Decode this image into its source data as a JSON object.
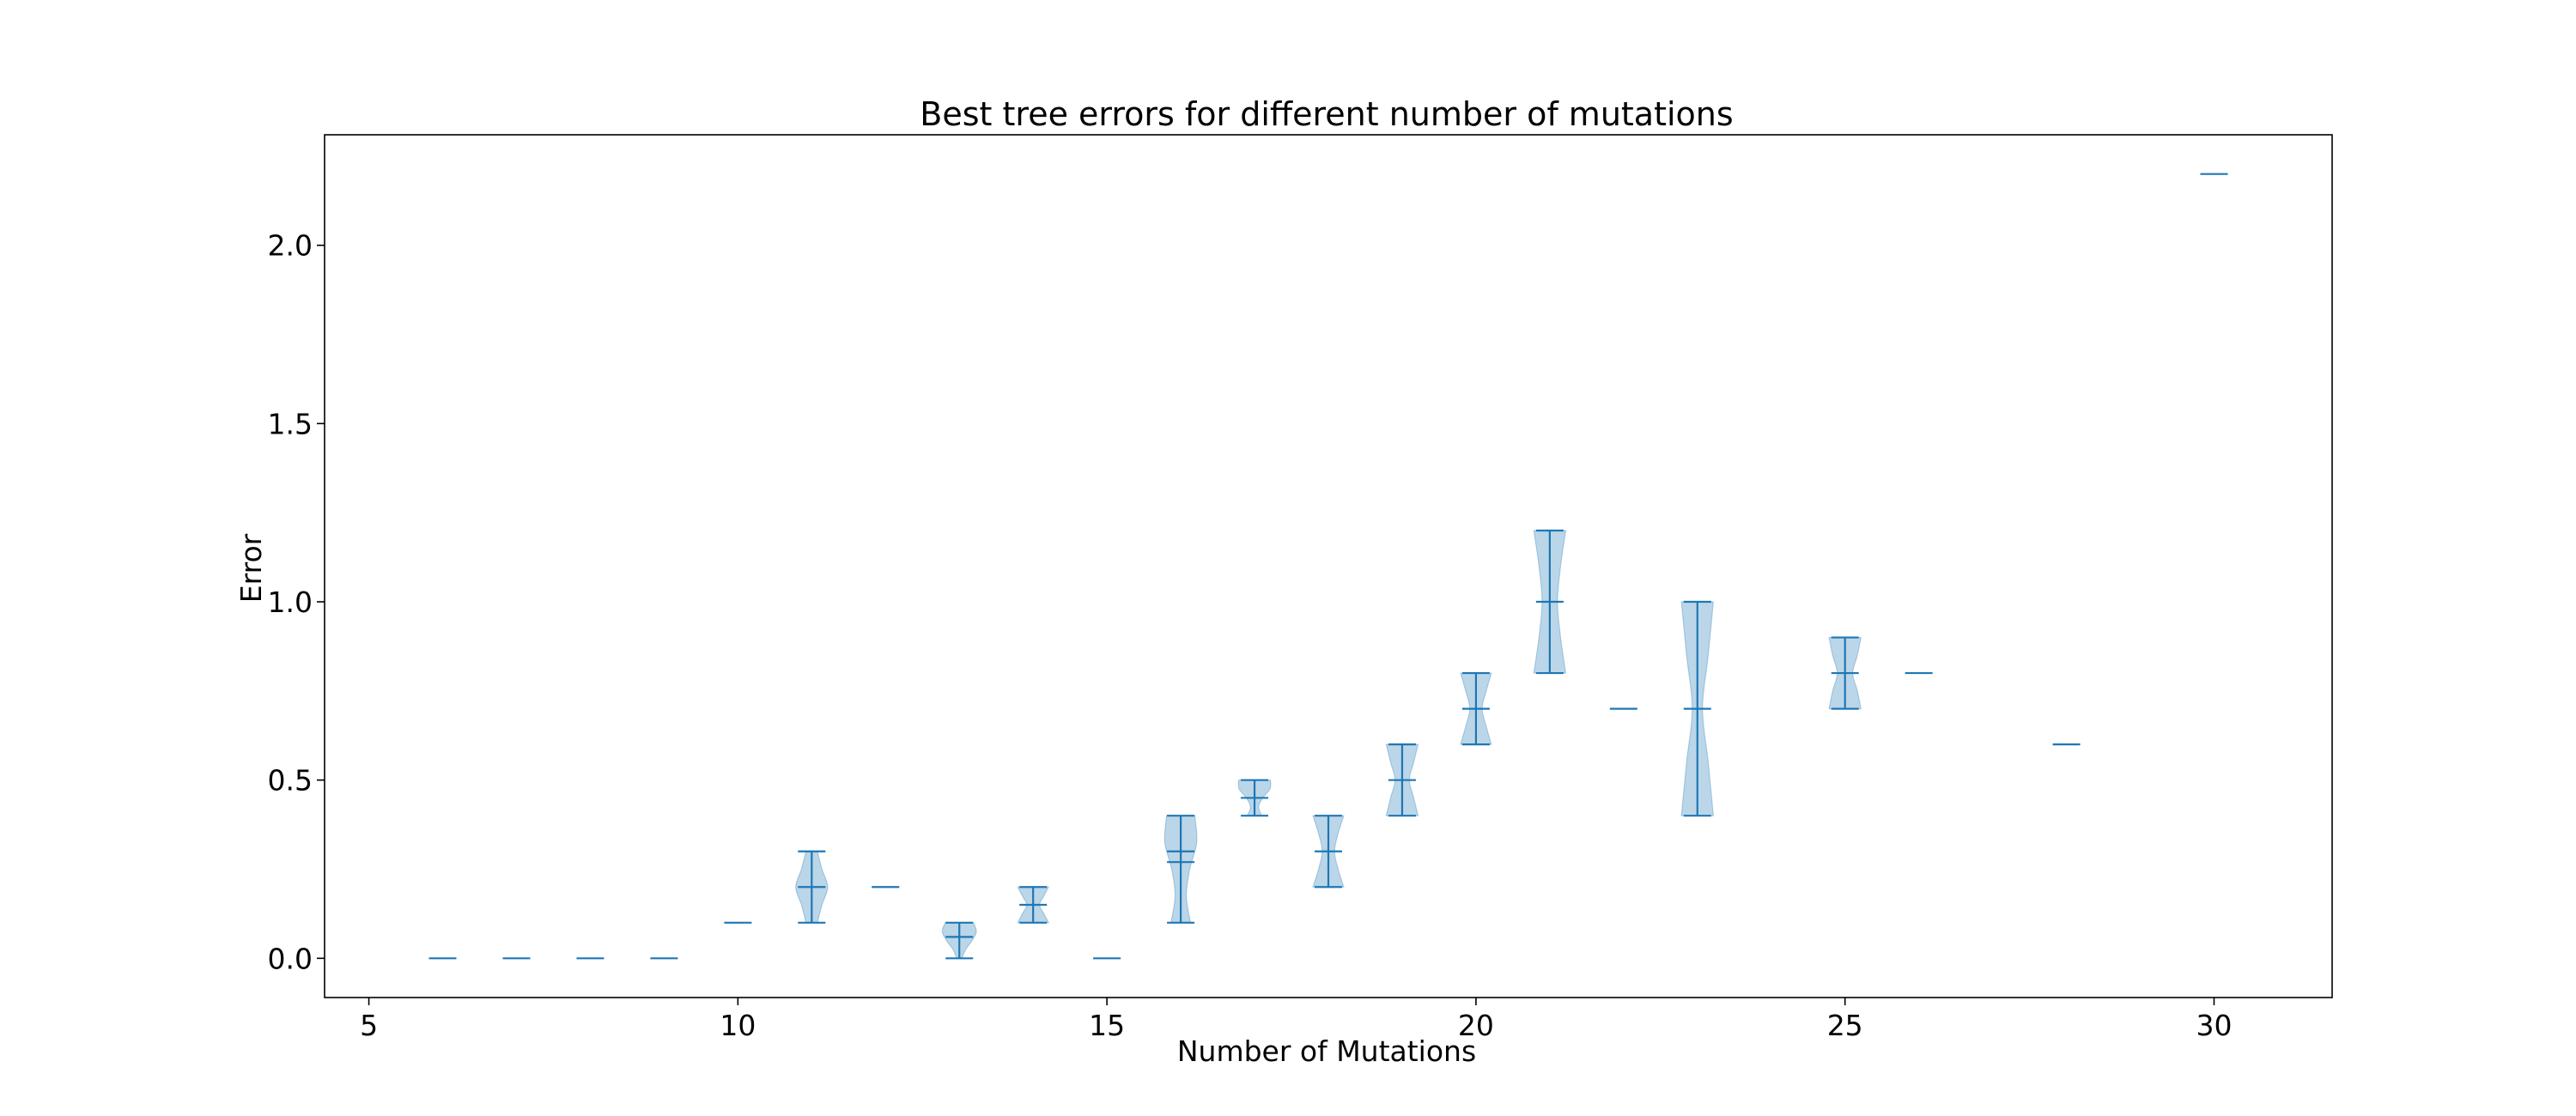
{
  "chart_data": {
    "type": "violin",
    "title": "Best tree errors for different number of mutations",
    "xlabel": "Number of Mutations",
    "ylabel": "Error",
    "xlim": [
      4.4,
      31.6
    ],
    "ylim": [
      -0.11,
      2.31
    ],
    "xticks": [
      5,
      10,
      15,
      20,
      25,
      30
    ],
    "yticks": [
      0.0,
      0.5,
      1.0,
      1.5,
      2.0
    ],
    "xtick_labels": [
      "5",
      "10",
      "15",
      "20",
      "25",
      "30"
    ],
    "ytick_labels": [
      "0.0",
      "0.5",
      "1.0",
      "1.5",
      "2.0"
    ],
    "grid": false,
    "colors": {
      "body": "#1f77b4",
      "line": "#1f77b4",
      "frame": "#000000"
    },
    "violins": [
      {
        "x": 6,
        "min": 0.0,
        "median": 0.0,
        "max": 0.0
      },
      {
        "x": 7,
        "min": 0.0,
        "median": 0.0,
        "max": 0.0
      },
      {
        "x": 8,
        "min": 0.0,
        "median": 0.0,
        "max": 0.0
      },
      {
        "x": 9,
        "min": 0.0,
        "median": 0.0,
        "max": 0.0
      },
      {
        "x": 10,
        "min": 0.1,
        "median": 0.1,
        "max": 0.1
      },
      {
        "x": 11,
        "min": 0.1,
        "median": 0.2,
        "max": 0.3,
        "shape": [
          0.22,
          0.4,
          0.62,
          0.4,
          0.22
        ]
      },
      {
        "x": 12,
        "min": 0.2,
        "median": 0.2,
        "max": 0.2
      },
      {
        "x": 13,
        "min": 0.0,
        "median": 0.06,
        "max": 0.1,
        "shape": [
          0.1,
          0.25,
          0.5,
          0.66,
          0.55
        ]
      },
      {
        "x": 14,
        "min": 0.1,
        "median": 0.15,
        "max": 0.2,
        "shape": [
          0.6,
          0.42,
          0.25,
          0.42,
          0.6
        ]
      },
      {
        "x": 15,
        "min": 0.0,
        "median": 0.0,
        "max": 0.0
      },
      {
        "x": 16,
        "min": 0.1,
        "median": 0.3,
        "mean": 0.27,
        "max": 0.4,
        "shape": [
          0.38,
          0.22,
          0.35,
          0.62,
          0.55
        ]
      },
      {
        "x": 17,
        "min": 0.4,
        "median": 0.45,
        "max": 0.5,
        "shape": [
          0.28,
          0.16,
          0.32,
          0.6,
          0.62
        ]
      },
      {
        "x": 18,
        "min": 0.2,
        "median": 0.3,
        "max": 0.4,
        "shape": [
          0.6,
          0.38,
          0.24,
          0.38,
          0.6
        ]
      },
      {
        "x": 19,
        "min": 0.4,
        "median": 0.5,
        "max": 0.6,
        "shape": [
          0.62,
          0.45,
          0.28,
          0.45,
          0.62
        ]
      },
      {
        "x": 20,
        "min": 0.6,
        "median": 0.7,
        "max": 0.8,
        "shape": [
          0.6,
          0.4,
          0.24,
          0.4,
          0.6
        ]
      },
      {
        "x": 21,
        "min": 0.8,
        "median": 1.0,
        "max": 1.2,
        "shape": [
          0.62,
          0.42,
          0.3,
          0.42,
          0.62
        ]
      },
      {
        "x": 22,
        "min": 0.7,
        "median": 0.7,
        "max": 0.7
      },
      {
        "x": 23,
        "min": 0.4,
        "median": 0.7,
        "max": 1.0,
        "shape": [
          0.62,
          0.42,
          0.2,
          0.42,
          0.62
        ]
      },
      {
        "x": 25,
        "min": 0.7,
        "median": 0.8,
        "max": 0.9,
        "shape": [
          0.62,
          0.48,
          0.3,
          0.48,
          0.62
        ]
      },
      {
        "x": 26,
        "min": 0.8,
        "median": 0.8,
        "max": 0.8
      },
      {
        "x": 28,
        "min": 0.6,
        "median": 0.6,
        "max": 0.6
      },
      {
        "x": 30,
        "min": 2.2,
        "median": 2.2,
        "max": 2.2
      }
    ]
  }
}
